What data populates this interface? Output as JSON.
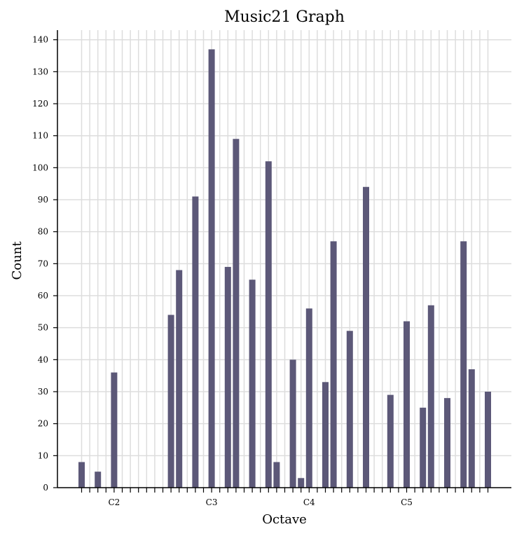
{
  "chart_data": {
    "type": "bar",
    "title": "Music21 Graph",
    "xlabel": "Octave",
    "ylabel": "Count",
    "ylim": [
      0,
      143
    ],
    "yticks": [
      0,
      10,
      20,
      30,
      40,
      50,
      60,
      70,
      80,
      90,
      100,
      110,
      120,
      130,
      140
    ],
    "grid": true,
    "bar_color": "#5c5878",
    "x_slot_count": 51,
    "labeled_ticks": [
      {
        "slot": 4,
        "label": "C2"
      },
      {
        "slot": 16,
        "label": "C3"
      },
      {
        "slot": 28,
        "label": "C4"
      },
      {
        "slot": 40,
        "label": "C5"
      }
    ],
    "bars": [
      {
        "slot": 0,
        "value": 8
      },
      {
        "slot": 2,
        "value": 5
      },
      {
        "slot": 4,
        "value": 36
      },
      {
        "slot": 11,
        "value": 54
      },
      {
        "slot": 12,
        "value": 68
      },
      {
        "slot": 14,
        "value": 91
      },
      {
        "slot": 16,
        "value": 137
      },
      {
        "slot": 18,
        "value": 69
      },
      {
        "slot": 19,
        "value": 109
      },
      {
        "slot": 21,
        "value": 65
      },
      {
        "slot": 23,
        "value": 102
      },
      {
        "slot": 24,
        "value": 8
      },
      {
        "slot": 26,
        "value": 40
      },
      {
        "slot": 27,
        "value": 3
      },
      {
        "slot": 28,
        "value": 56
      },
      {
        "slot": 30,
        "value": 33
      },
      {
        "slot": 31,
        "value": 77
      },
      {
        "slot": 33,
        "value": 49
      },
      {
        "slot": 35,
        "value": 94
      },
      {
        "slot": 38,
        "value": 29
      },
      {
        "slot": 40,
        "value": 52
      },
      {
        "slot": 42,
        "value": 25
      },
      {
        "slot": 43,
        "value": 57
      },
      {
        "slot": 45,
        "value": 28
      },
      {
        "slot": 47,
        "value": 77
      },
      {
        "slot": 48,
        "value": 37
      },
      {
        "slot": 50,
        "value": 30
      }
    ]
  }
}
